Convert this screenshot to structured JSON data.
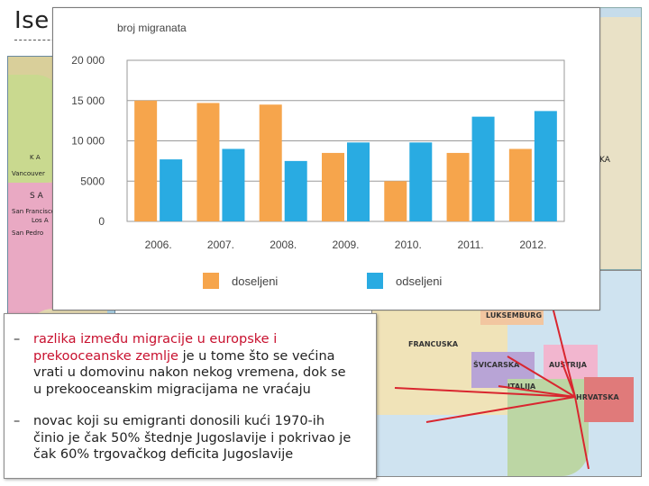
{
  "slide": {
    "title": "Ise"
  },
  "map_left_labels": [
    "K A",
    "Vancouver",
    "S A",
    "San Francisco",
    "Los A",
    "San Pedro"
  ],
  "map_right_labels": [
    "LUKSEMBURG",
    "FRANCUSKA",
    "ŠVICARSKA",
    "AUSTRIJA",
    "ITALIJA",
    "HRVATSKA"
  ],
  "map_top_right_label": "KA",
  "chart_data": {
    "type": "bar",
    "ylabel": "broj migranata",
    "categories": [
      "2006.",
      "2007.",
      "2008.",
      "2009.",
      "2010.",
      "2011.",
      "2012."
    ],
    "ylim": [
      0,
      20000
    ],
    "yticks": [
      0,
      5000,
      10000,
      15000,
      20000
    ],
    "ytick_labels": [
      "0",
      "5000",
      "10 000",
      "15 000",
      "20 000"
    ],
    "grid": true,
    "legend_position": "bottom",
    "series": [
      {
        "name": "doseljeni",
        "color": "#f6a54c",
        "values": [
          15000,
          14700,
          14500,
          8500,
          5000,
          8500,
          9000
        ]
      },
      {
        "name": "odseljeni",
        "color": "#29abe2",
        "values": [
          7700,
          9000,
          7500,
          9800,
          9800,
          13000,
          13700
        ]
      }
    ]
  },
  "textbox": {
    "bullet_symbol": "–",
    "bullet1_red": "razlika između migracije u europske i prekooceanske zemlje",
    "bullet1_rest": " je u tome što se većina vrati u domovinu nakon nekog vremena, dok se u prekooceanskim migracijama ne vraćaju",
    "bullet2": "novac koji su emigranti donosili kući 1970-ih činio je čak 50% štednje Jugoslavije i pokrivao je čak 60% trgovačkog deficita Jugoslavije"
  }
}
